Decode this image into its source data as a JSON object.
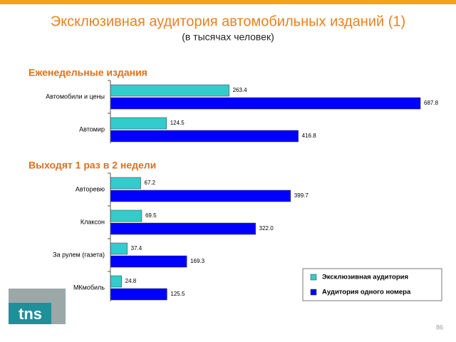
{
  "chart_data": {
    "type": "bar",
    "orientation": "horizontal",
    "title": "Эксклюзивная аудитория автомобильных изданий (1)",
    "subtitle": "(в тысячах человек)",
    "groups": [
      {
        "title": "Еженедельные издания",
        "categories": [
          "Автомобили и цены",
          "Автомир"
        ]
      },
      {
        "title": "Выходят 1 раз в 2 недели",
        "categories": [
          "Авторевю",
          "Клаксон",
          "За рулем (газета)",
          "МКмобиль"
        ]
      }
    ],
    "series": [
      {
        "name": "Эксклюзивная аудитория",
        "color": "#33cccc",
        "values": [
          263.4,
          124.5,
          67.2,
          69.5,
          37.4,
          24.8
        ]
      },
      {
        "name": "Аудитория одного номера",
        "color": "#0000ff",
        "values": [
          687.8,
          416.8,
          399.7,
          322.0,
          169.3,
          125.5
        ],
        "value_labels": [
          "687.8",
          "416.8",
          "399.7",
          "322.0",
          "169.3",
          "125.5"
        ]
      }
    ],
    "legend": "lower right"
  },
  "footer": {
    "logo": "tns",
    "page_number": "86"
  }
}
